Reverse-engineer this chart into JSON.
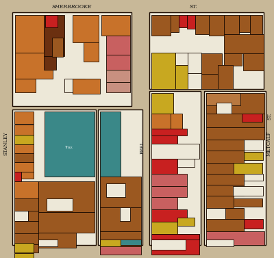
{
  "bg_color": "#c8b898",
  "border_color": "#1a0a00",
  "title_sherbrooke": "SHERBROOKE",
  "title_st": "ST.",
  "label_stanley": "STANLEY",
  "label_peel": "PEEL",
  "label_metcalf": "METCALF",
  "label_st2": "ST.",
  "colors": {
    "orange": "#c8722a",
    "dark_brown": "#6b3010",
    "mid_brown": "#9b5820",
    "light_brown": "#b87840",
    "red": "#c82020",
    "pink_red": "#c86060",
    "salmon": "#c89080",
    "teal": "#3a8888",
    "yellow": "#c8a820",
    "gold": "#d4a030",
    "white": "#ede8d8",
    "cream": "#e0d8c0"
  }
}
